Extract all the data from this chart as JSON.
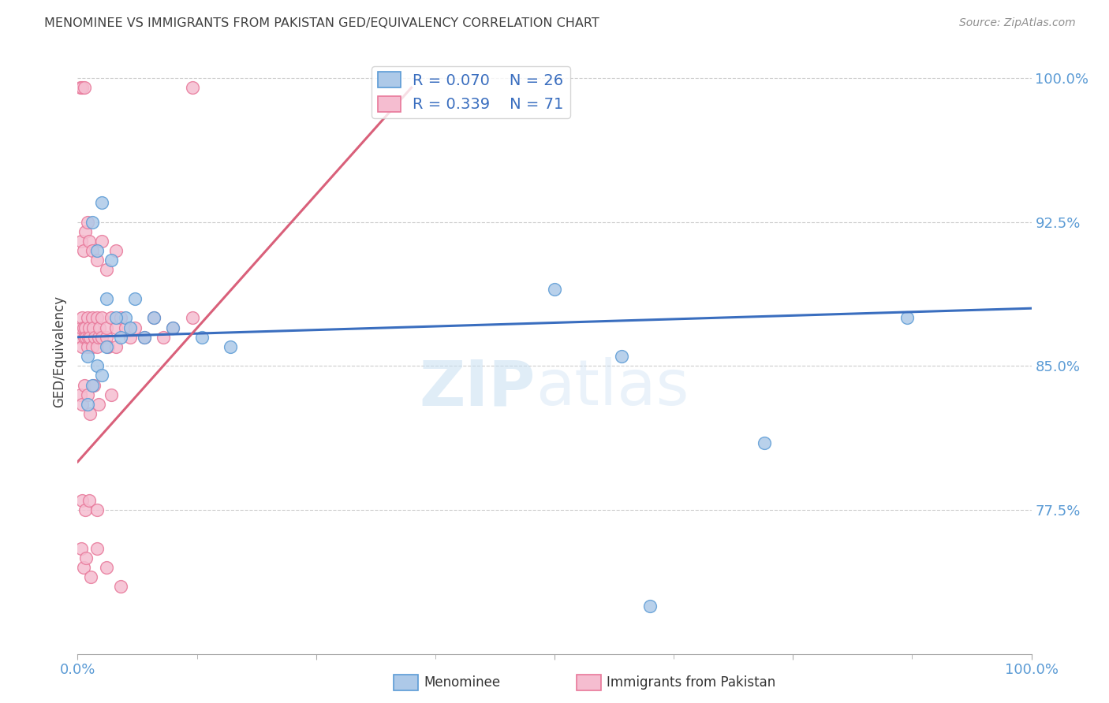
{
  "title": "MENOMINEE VS IMMIGRANTS FROM PAKISTAN GED/EQUIVALENCY CORRELATION CHART",
  "source": "Source: ZipAtlas.com",
  "ylabel": "GED/Equivalency",
  "watermark_zip": "ZIP",
  "watermark_atlas": "atlas",
  "xlim": [
    0.0,
    100.0
  ],
  "ylim": [
    70.0,
    101.5
  ],
  "yticks": [
    77.5,
    85.0,
    92.5,
    100.0
  ],
  "xticks": [
    0.0,
    25.0,
    50.0,
    75.0,
    100.0
  ],
  "legend_blue_r": "R = 0.070",
  "legend_blue_n": "N = 26",
  "legend_pink_r": "R = 0.339",
  "legend_pink_n": "N = 71",
  "blue_color": "#adc9e8",
  "blue_edge": "#5b9bd5",
  "pink_color": "#f5bdd0",
  "pink_edge": "#e8789a",
  "blue_line_color": "#3a6ebf",
  "pink_line_color": "#d9607a",
  "title_color": "#404040",
  "source_color": "#909090",
  "tick_color": "#5b9bd5",
  "grid_color": "#cccccc",
  "background_color": "#ffffff",
  "blue_scatter_x": [
    1.5,
    2.5,
    3.0,
    4.5,
    5.0,
    6.0,
    7.0,
    8.0,
    10.0,
    13.0,
    16.0,
    2.0,
    3.5,
    4.0,
    5.5,
    1.0,
    2.0,
    3.0,
    1.5,
    2.5,
    1.0,
    50.0,
    57.0,
    72.0,
    87.0,
    60.0
  ],
  "blue_scatter_y": [
    92.5,
    93.5,
    88.5,
    86.5,
    87.5,
    88.5,
    86.5,
    87.5,
    87.0,
    86.5,
    86.0,
    91.0,
    90.5,
    87.5,
    87.0,
    85.5,
    85.0,
    86.0,
    84.0,
    84.5,
    83.0,
    89.0,
    85.5,
    81.0,
    87.5,
    72.5
  ],
  "pink_scatter_x": [
    0.3,
    0.4,
    0.5,
    0.5,
    0.6,
    0.7,
    0.8,
    0.9,
    1.0,
    1.0,
    1.1,
    1.2,
    1.3,
    1.5,
    1.5,
    1.6,
    1.8,
    2.0,
    2.0,
    2.2,
    2.3,
    2.5,
    2.5,
    3.0,
    3.0,
    3.2,
    3.5,
    4.0,
    4.0,
    4.5,
    5.0,
    5.5,
    6.0,
    7.0,
    8.0,
    9.0,
    10.0,
    12.0,
    0.4,
    0.6,
    0.8,
    1.0,
    1.2,
    1.5,
    2.0,
    2.5,
    3.0,
    4.0,
    0.3,
    0.5,
    0.7,
    1.0,
    1.3,
    1.7,
    2.2,
    3.5,
    0.4,
    0.6,
    0.9,
    1.4,
    2.0,
    3.0,
    4.5,
    0.5,
    0.8,
    1.2,
    2.0,
    12.0,
    0.3,
    0.5,
    0.7
  ],
  "pink_scatter_y": [
    86.5,
    87.0,
    86.0,
    87.5,
    87.0,
    86.5,
    87.0,
    86.5,
    86.0,
    87.5,
    86.5,
    87.0,
    86.5,
    86.0,
    87.5,
    87.0,
    86.5,
    86.0,
    87.5,
    86.5,
    87.0,
    86.5,
    87.5,
    86.5,
    87.0,
    86.0,
    87.5,
    87.0,
    86.0,
    87.5,
    87.0,
    86.5,
    87.0,
    86.5,
    87.5,
    86.5,
    87.0,
    87.5,
    91.5,
    91.0,
    92.0,
    92.5,
    91.5,
    91.0,
    90.5,
    91.5,
    90.0,
    91.0,
    83.5,
    83.0,
    84.0,
    83.5,
    82.5,
    84.0,
    83.0,
    83.5,
    75.5,
    74.5,
    75.0,
    74.0,
    75.5,
    74.5,
    73.5,
    78.0,
    77.5,
    78.0,
    77.5,
    99.5,
    99.5,
    99.5,
    99.5
  ],
  "blue_line_x0": 0.0,
  "blue_line_x1": 100.0,
  "blue_line_y0": 86.5,
  "blue_line_y1": 88.0,
  "pink_line_x0": 0.0,
  "pink_line_x1": 35.0,
  "pink_line_y0": 80.0,
  "pink_line_y1": 99.5
}
